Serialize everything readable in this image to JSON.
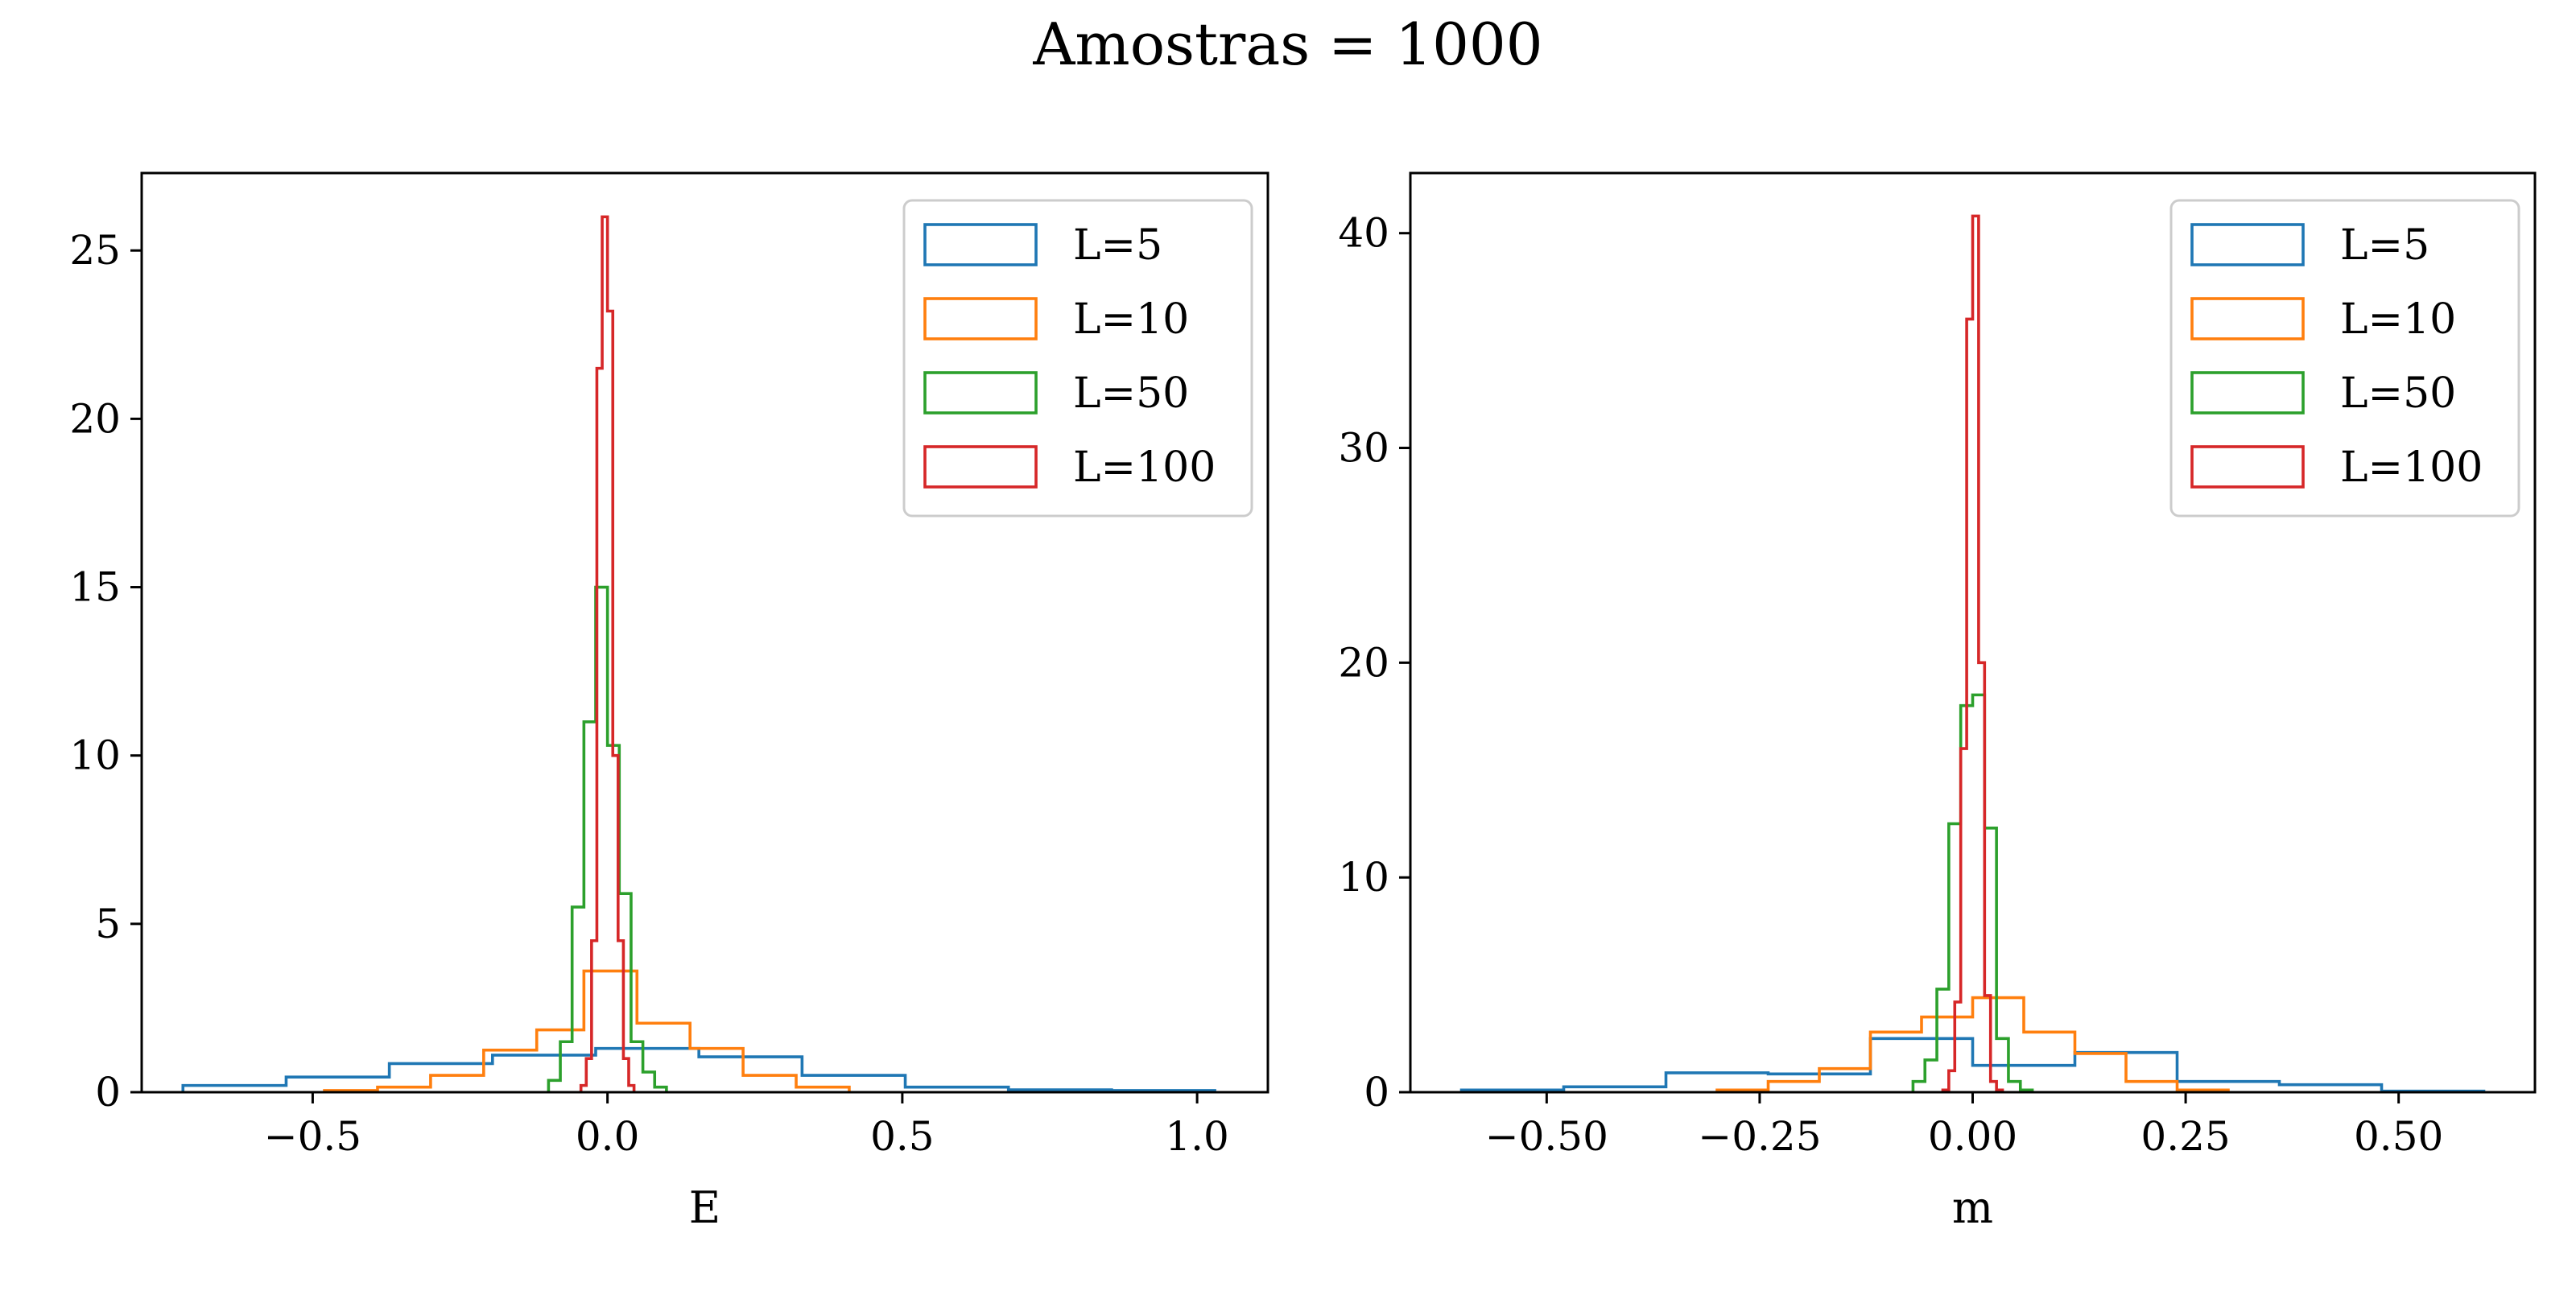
{
  "figure": {
    "title": "Amostras = 1000"
  },
  "colors": {
    "L=5": "#1f77b4",
    "L=10": "#ff7f0e",
    "L=50": "#2ca02c",
    "L=100": "#d62728"
  },
  "chart_data": [
    {
      "type": "histogram",
      "xlabel": "E",
      "ylabel": "",
      "xlim": [
        -0.79,
        1.12
      ],
      "ylim": [
        0,
        27.3
      ],
      "xticks": [
        -0.5,
        0.0,
        0.5,
        1.0
      ],
      "xtick_labels": [
        "−0.5",
        "0.0",
        "0.5",
        "1.0"
      ],
      "yticks": [
        0,
        5,
        10,
        15,
        20,
        25
      ],
      "ytick_labels": [
        "0",
        "5",
        "10",
        "15",
        "20",
        "25"
      ],
      "legend_position": "top-right",
      "grid": false,
      "series": [
        {
          "name": "L=5",
          "edges": [
            -0.72,
            -0.545,
            -0.37,
            -0.195,
            -0.02,
            0.155,
            0.33,
            0.505,
            0.68,
            0.855,
            1.03
          ],
          "values": [
            0.2,
            0.45,
            0.85,
            1.1,
            1.3,
            1.05,
            0.5,
            0.15,
            0.07,
            0.05
          ]
        },
        {
          "name": "L=10",
          "edges": [
            -0.48,
            -0.39,
            -0.3,
            -0.21,
            -0.12,
            -0.04,
            0.05,
            0.14,
            0.23,
            0.32,
            0.41
          ],
          "values": [
            0.05,
            0.15,
            0.5,
            1.25,
            1.85,
            3.6,
            2.05,
            1.3,
            0.5,
            0.15
          ]
        },
        {
          "name": "L=50",
          "edges": [
            -0.1,
            -0.08,
            -0.06,
            -0.04,
            -0.02,
            0.0,
            0.02,
            0.04,
            0.06,
            0.08,
            0.1
          ],
          "values": [
            0.35,
            1.5,
            5.5,
            11.0,
            15.0,
            10.3,
            5.9,
            1.5,
            0.6,
            0.15
          ]
        },
        {
          "name": "L=100",
          "edges": [
            -0.045,
            -0.036,
            -0.027,
            -0.018,
            -0.009,
            0.0,
            0.009,
            0.018,
            0.027,
            0.036,
            0.045
          ],
          "values": [
            0.2,
            1.0,
            4.5,
            21.5,
            26.0,
            23.2,
            10.0,
            4.5,
            1.0,
            0.2
          ]
        }
      ]
    },
    {
      "type": "histogram",
      "xlabel": "m",
      "ylabel": "",
      "xlim": [
        -0.66,
        0.66
      ],
      "ylim": [
        0,
        42.8
      ],
      "xticks": [
        -0.5,
        -0.25,
        0.0,
        0.25,
        0.5
      ],
      "xtick_labels": [
        "−0.50",
        "−0.25",
        "0.00",
        "0.25",
        "0.50"
      ],
      "yticks": [
        0,
        10,
        20,
        30,
        40
      ],
      "ytick_labels": [
        "0",
        "10",
        "20",
        "30",
        "40"
      ],
      "legend_position": "top-right",
      "grid": false,
      "series": [
        {
          "name": "L=5",
          "edges": [
            -0.6,
            -0.48,
            -0.36,
            -0.24,
            -0.12,
            0.0,
            0.12,
            0.24,
            0.36,
            0.48,
            0.6
          ],
          "values": [
            0.1,
            0.25,
            0.9,
            0.85,
            2.5,
            1.25,
            1.85,
            0.5,
            0.35,
            0.05
          ]
        },
        {
          "name": "L=10",
          "edges": [
            -0.3,
            -0.24,
            -0.18,
            -0.12,
            -0.06,
            0.0,
            0.06,
            0.12,
            0.18,
            0.24,
            0.3
          ],
          "values": [
            0.1,
            0.5,
            1.1,
            2.8,
            3.5,
            4.4,
            2.8,
            1.8,
            0.5,
            0.1
          ]
        },
        {
          "name": "L=50",
          "edges": [
            -0.07,
            -0.056,
            -0.042,
            -0.028,
            -0.014,
            0.0,
            0.014,
            0.028,
            0.042,
            0.056,
            0.07
          ],
          "values": [
            0.5,
            1.5,
            4.8,
            12.5,
            18.0,
            18.5,
            12.3,
            2.5,
            0.5,
            0.1
          ]
        },
        {
          "name": "L=100",
          "edges": [
            -0.035,
            -0.028,
            -0.021,
            -0.014,
            -0.007,
            0.0,
            0.007,
            0.014,
            0.021,
            0.028,
            0.035
          ],
          "values": [
            0.1,
            1.0,
            4.2,
            16.0,
            36.0,
            40.8,
            20.0,
            4.5,
            0.5,
            0.1
          ]
        }
      ]
    }
  ]
}
